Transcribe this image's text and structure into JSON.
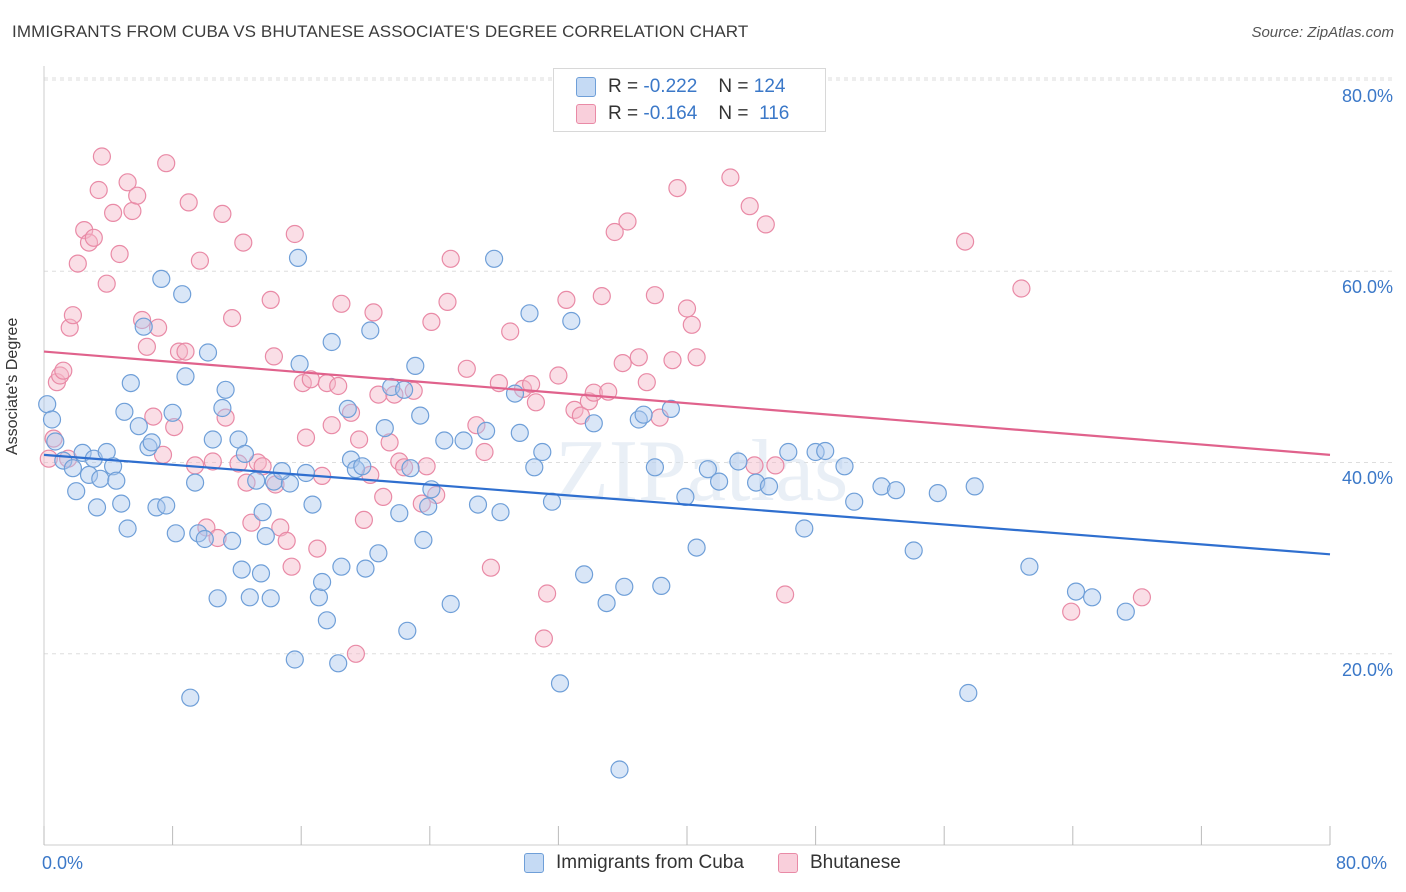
{
  "title": "IMMIGRANTS FROM CUBA VS BHUTANESE ASSOCIATE'S DEGREE CORRELATION CHART",
  "source": "Source: ZipAtlas.com",
  "watermark": "ZIPatlas",
  "colors": {
    "blue_fill": "#aac8ee",
    "blue_stroke": "#6f9fd8",
    "blue_line": "#2f6fcf",
    "pink_fill": "#f5b5c8",
    "pink_stroke": "#e98aa6",
    "pink_line": "#e0628c",
    "grid": "#dddddd",
    "axis_text": "#3b78c8"
  },
  "legend_top": {
    "rows": [
      {
        "r_label": "R =",
        "r_value": "-0.222",
        "n_label": "N =",
        "n_value": "124",
        "color": "blue"
      },
      {
        "r_label": "R =",
        "r_value": "-0.164",
        "n_label": "N =",
        "n_value": "116",
        "color": "pink"
      }
    ]
  },
  "legend_bottom": [
    "Immigrants from Cuba",
    "Bhutanese"
  ],
  "chart_data": {
    "type": "scatter",
    "title": "IMMIGRANTS FROM CUBA VS BHUTANESE ASSOCIATE'S DEGREE CORRELATION CHART",
    "xlabel": "",
    "ylabel": "Associate's Degree",
    "xlim": [
      0,
      80
    ],
    "ylim": [
      0,
      80
    ],
    "x_tick_labels": [
      "0.0%",
      "80.0%"
    ],
    "y_tick_labels": [
      "20.0%",
      "40.0%",
      "60.0%",
      "80.0%"
    ],
    "y_ticks": [
      20,
      40,
      60,
      80
    ],
    "series": [
      {
        "name": "Immigrants from Cuba",
        "color": "blue",
        "R": -0.222,
        "N": 124,
        "trend": {
          "x": [
            0,
            80
          ],
          "y": [
            40.8,
            30.4
          ]
        },
        "points": [
          [
            0.2,
            46.1
          ],
          [
            0.5,
            44.5
          ],
          [
            0.7,
            42.2
          ],
          [
            1.2,
            40.2
          ],
          [
            1.8,
            39.4
          ],
          [
            2.0,
            37.0
          ],
          [
            2.4,
            41.0
          ],
          [
            2.8,
            38.7
          ],
          [
            3.1,
            40.4
          ],
          [
            3.5,
            38.3
          ],
          [
            3.3,
            35.3
          ],
          [
            3.9,
            41.1
          ],
          [
            4.3,
            39.6
          ],
          [
            4.5,
            38.1
          ],
          [
            4.8,
            35.7
          ],
          [
            5.0,
            45.3
          ],
          [
            5.2,
            33.1
          ],
          [
            5.4,
            48.3
          ],
          [
            5.9,
            43.8
          ],
          [
            6.2,
            54.2
          ],
          [
            6.5,
            41.6
          ],
          [
            6.7,
            42.1
          ],
          [
            7.0,
            35.3
          ],
          [
            7.3,
            59.2
          ],
          [
            7.6,
            35.5
          ],
          [
            8.0,
            45.2
          ],
          [
            8.2,
            32.6
          ],
          [
            8.6,
            57.6
          ],
          [
            8.8,
            49.0
          ],
          [
            9.1,
            15.4
          ],
          [
            9.6,
            32.6
          ],
          [
            10.0,
            32.0
          ],
          [
            10.2,
            51.5
          ],
          [
            10.5,
            42.4
          ],
          [
            10.8,
            25.8
          ],
          [
            11.1,
            45.7
          ],
          [
            11.3,
            47.6
          ],
          [
            11.7,
            31.8
          ],
          [
            12.1,
            42.4
          ],
          [
            12.3,
            28.8
          ],
          [
            12.5,
            40.9
          ],
          [
            12.8,
            25.9
          ],
          [
            13.2,
            38.1
          ],
          [
            13.5,
            28.4
          ],
          [
            13.6,
            34.8
          ],
          [
            13.8,
            32.3
          ],
          [
            14.1,
            25.8
          ],
          [
            14.3,
            38.0
          ],
          [
            15.3,
            37.8
          ],
          [
            15.6,
            19.4
          ],
          [
            15.8,
            61.4
          ],
          [
            15.9,
            50.3
          ],
          [
            16.3,
            38.9
          ],
          [
            16.7,
            35.6
          ],
          [
            17.1,
            25.9
          ],
          [
            17.3,
            27.5
          ],
          [
            17.6,
            23.5
          ],
          [
            17.9,
            52.6
          ],
          [
            18.3,
            19.0
          ],
          [
            18.5,
            29.1
          ],
          [
            18.9,
            45.6
          ],
          [
            19.1,
            40.3
          ],
          [
            19.4,
            39.3
          ],
          [
            19.8,
            39.6
          ],
          [
            20.0,
            28.9
          ],
          [
            20.3,
            53.8
          ],
          [
            20.8,
            30.5
          ],
          [
            21.2,
            43.6
          ],
          [
            21.6,
            47.9
          ],
          [
            22.1,
            34.7
          ],
          [
            22.4,
            47.6
          ],
          [
            22.6,
            22.4
          ],
          [
            22.8,
            39.4
          ],
          [
            23.1,
            50.1
          ],
          [
            23.4,
            44.9
          ],
          [
            23.6,
            31.9
          ],
          [
            23.9,
            35.4
          ],
          [
            24.9,
            42.3
          ],
          [
            25.3,
            25.2
          ],
          [
            26.1,
            42.3
          ],
          [
            27.0,
            35.6
          ],
          [
            27.5,
            43.3
          ],
          [
            28.0,
            61.3
          ],
          [
            28.4,
            34.8
          ],
          [
            29.3,
            47.2
          ],
          [
            29.6,
            43.1
          ],
          [
            30.2,
            55.6
          ],
          [
            30.5,
            39.5
          ],
          [
            31.0,
            41.1
          ],
          [
            31.6,
            35.9
          ],
          [
            32.1,
            16.9
          ],
          [
            32.8,
            54.8
          ],
          [
            33.6,
            28.3
          ],
          [
            34.2,
            44.1
          ],
          [
            35.0,
            25.3
          ],
          [
            35.8,
            7.9
          ],
          [
            36.1,
            27.0
          ],
          [
            37.0,
            44.5
          ],
          [
            37.3,
            45.0
          ],
          [
            38.0,
            39.5
          ],
          [
            38.4,
            27.1
          ],
          [
            39.0,
            45.6
          ],
          [
            39.9,
            36.4
          ],
          [
            40.6,
            31.1
          ],
          [
            41.3,
            39.3
          ],
          [
            42.0,
            38.0
          ],
          [
            43.2,
            40.1
          ],
          [
            44.3,
            37.9
          ],
          [
            45.1,
            37.5
          ],
          [
            46.3,
            41.1
          ],
          [
            47.3,
            33.1
          ],
          [
            48.0,
            41.1
          ],
          [
            48.6,
            41.2
          ],
          [
            49.8,
            39.6
          ],
          [
            50.4,
            35.9
          ],
          [
            52.1,
            37.5
          ],
          [
            53.0,
            37.1
          ],
          [
            54.1,
            30.8
          ],
          [
            55.6,
            36.8
          ],
          [
            57.5,
            15.9
          ],
          [
            57.9,
            37.5
          ],
          [
            61.3,
            29.1
          ],
          [
            64.2,
            26.5
          ],
          [
            65.2,
            25.9
          ],
          [
            67.3,
            24.4
          ],
          [
            24.1,
            37.2
          ],
          [
            14.8,
            39.1
          ],
          [
            9.4,
            37.9
          ]
        ]
      },
      {
        "name": "Bhutanese",
        "color": "pink",
        "R": -0.164,
        "N": 116,
        "trend": {
          "x": [
            0,
            80
          ],
          "y": [
            51.6,
            40.8
          ]
        },
        "points": [
          [
            0.3,
            40.4
          ],
          [
            0.6,
            42.5
          ],
          [
            0.8,
            48.4
          ],
          [
            1.0,
            49.1
          ],
          [
            1.2,
            49.6
          ],
          [
            1.5,
            40.4
          ],
          [
            1.6,
            54.1
          ],
          [
            1.8,
            55.4
          ],
          [
            2.1,
            60.8
          ],
          [
            2.5,
            64.3
          ],
          [
            2.8,
            63.0
          ],
          [
            3.1,
            63.5
          ],
          [
            3.4,
            68.5
          ],
          [
            3.6,
            72.0
          ],
          [
            3.9,
            58.7
          ],
          [
            4.3,
            66.1
          ],
          [
            4.7,
            61.8
          ],
          [
            5.2,
            69.3
          ],
          [
            5.5,
            66.3
          ],
          [
            5.8,
            67.9
          ],
          [
            6.1,
            54.9
          ],
          [
            6.4,
            52.1
          ],
          [
            6.8,
            44.8
          ],
          [
            7.1,
            54.1
          ],
          [
            7.4,
            40.8
          ],
          [
            7.6,
            71.3
          ],
          [
            8.1,
            43.7
          ],
          [
            8.4,
            51.6
          ],
          [
            8.8,
            51.6
          ],
          [
            9.0,
            67.2
          ],
          [
            9.4,
            39.7
          ],
          [
            9.7,
            61.1
          ],
          [
            10.1,
            33.2
          ],
          [
            10.5,
            40.1
          ],
          [
            10.8,
            32.1
          ],
          [
            11.1,
            66.0
          ],
          [
            11.3,
            44.7
          ],
          [
            11.7,
            55.1
          ],
          [
            12.1,
            39.9
          ],
          [
            12.4,
            63.0
          ],
          [
            12.6,
            37.9
          ],
          [
            12.9,
            33.7
          ],
          [
            13.3,
            40.0
          ],
          [
            13.6,
            39.6
          ],
          [
            14.1,
            57.0
          ],
          [
            14.3,
            51.1
          ],
          [
            14.7,
            33.2
          ],
          [
            15.1,
            31.8
          ],
          [
            15.4,
            29.1
          ],
          [
            15.6,
            63.9
          ],
          [
            16.1,
            48.3
          ],
          [
            16.3,
            42.6
          ],
          [
            16.6,
            48.7
          ],
          [
            17.0,
            31.0
          ],
          [
            17.3,
            38.6
          ],
          [
            17.6,
            48.3
          ],
          [
            17.9,
            43.9
          ],
          [
            18.3,
            48.0
          ],
          [
            18.5,
            56.6
          ],
          [
            19.1,
            45.2
          ],
          [
            19.4,
            20.0
          ],
          [
            19.6,
            42.4
          ],
          [
            19.9,
            34.0
          ],
          [
            20.3,
            38.7
          ],
          [
            20.5,
            55.7
          ],
          [
            20.8,
            47.1
          ],
          [
            21.1,
            36.4
          ],
          [
            21.5,
            42.1
          ],
          [
            21.8,
            47.1
          ],
          [
            22.1,
            40.1
          ],
          [
            22.4,
            39.5
          ],
          [
            23.0,
            47.5
          ],
          [
            23.5,
            35.7
          ],
          [
            23.8,
            39.6
          ],
          [
            24.1,
            54.7
          ],
          [
            24.4,
            36.6
          ],
          [
            25.3,
            61.3
          ],
          [
            25.1,
            56.8
          ],
          [
            26.3,
            49.8
          ],
          [
            26.9,
            43.9
          ],
          [
            27.4,
            41.1
          ],
          [
            27.8,
            29.0
          ],
          [
            28.3,
            48.3
          ],
          [
            29.0,
            53.7
          ],
          [
            29.8,
            47.7
          ],
          [
            30.3,
            48.2
          ],
          [
            30.6,
            46.3
          ],
          [
            31.1,
            21.6
          ],
          [
            31.3,
            26.3
          ],
          [
            32.0,
            49.1
          ],
          [
            32.5,
            57.0
          ],
          [
            33.0,
            45.5
          ],
          [
            33.4,
            44.9
          ],
          [
            33.9,
            46.4
          ],
          [
            34.2,
            47.3
          ],
          [
            34.7,
            57.4
          ],
          [
            35.1,
            47.4
          ],
          [
            35.5,
            64.1
          ],
          [
            36.0,
            50.4
          ],
          [
            36.3,
            65.2
          ],
          [
            37.0,
            51.0
          ],
          [
            37.5,
            48.4
          ],
          [
            38.0,
            57.5
          ],
          [
            38.3,
            44.7
          ],
          [
            39.1,
            50.7
          ],
          [
            39.4,
            68.7
          ],
          [
            40.0,
            56.1
          ],
          [
            40.3,
            54.4
          ],
          [
            40.6,
            51.0
          ],
          [
            42.7,
            69.8
          ],
          [
            43.9,
            66.8
          ],
          [
            44.9,
            64.9
          ],
          [
            45.5,
            39.7
          ],
          [
            46.1,
            26.2
          ],
          [
            57.3,
            63.1
          ],
          [
            60.8,
            58.2
          ],
          [
            63.9,
            24.4
          ],
          [
            68.3,
            25.9
          ],
          [
            44.2,
            39.7
          ],
          [
            14.4,
            37.7
          ]
        ]
      }
    ]
  }
}
